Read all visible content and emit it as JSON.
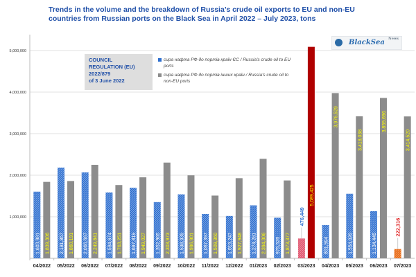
{
  "title": "Trends in the volume and the breakdown of Russia’s crude oil exports to EU and non-EU countries from Russian ports on the Black Sea in April 2022 – July 2023, tons",
  "logo_text": "BlackSea",
  "logo_news": "News",
  "council_note": [
    "COUNCIL",
    "REGULATION (EU)",
    "2022/879",
    "of 3 June 2022"
  ],
  "colors": {
    "eu": "#2e6fcf",
    "non_eu": "#8c8c8c",
    "highlight_non_eu": "#b00000",
    "highlight_eu_03_2023": "#e0506a",
    "highlight_eu_07_2023": "#e8630a",
    "title": "#1f4fa8",
    "label_yellow": "#ffff00"
  },
  "chart_data": {
    "type": "bar",
    "title": "Trends in the volume and the breakdown of Russia’s crude oil exports to EU and non-EU countries from Russian ports on the Black Sea in April 2022 – July 2023, tons",
    "xlabel": "",
    "ylabel": "",
    "ylim": [
      0,
      5000000
    ],
    "yticks": [
      "0",
      "1,000,000",
      "2,000,000",
      "3,000,000",
      "4,000,000",
      "5,000,000"
    ],
    "grid": true,
    "legend_position": "top-center",
    "categories": [
      "04/2022",
      "05/2022",
      "06/2022",
      "07/2022",
      "08/2022",
      "09/2022",
      "10/2022",
      "11/2022",
      "12/2022",
      "01/2023",
      "02/2023",
      "03/2023",
      "04/2023",
      "05/2023",
      "06/2023",
      "07/2023"
    ],
    "series": [
      {
        "name": "сира нафта РФ до портів країн ЄС / Russia's crude oil to EU ports",
        "values": [
          1603981,
          2181857,
          2066667,
          1584674,
          1697819,
          1352965,
          1538939,
          1067397,
          1019247,
          1274281,
          975520,
          476449,
          801594,
          1554020,
          1134445,
          222316
        ],
        "labels": [
          "1,603,981",
          "2,181,857",
          "2,066,667",
          "1,584,674",
          "1,697,819",
          "1,352,965",
          "1,538,939",
          "1,067,397",
          "1,019,247",
          "1,274,281",
          "975,520",
          "476,449",
          "801,594",
          "1,554,020",
          "1,134,445",
          "222,316"
        ]
      },
      {
        "name": "сира нафта РФ до портів інших країн / Russia's crude oil to non-EU ports",
        "values": [
          1839306,
          1860191,
          2249841,
          1763251,
          1949027,
          2303973,
          1996901,
          1509360,
          1927948,
          2394306,
          1873377,
          5089425,
          3976529,
          3418038,
          3859696,
          3414520
        ],
        "labels": [
          "1,839,306",
          "1,860,191",
          "2,249,841",
          "1,763,251",
          "1,949,027",
          "2,303,973",
          "1,996,901",
          "1,509,360",
          "1,927,948",
          "2,394,306",
          "1,873,377",
          "5,089,425",
          "3,976,529",
          "3,418,038",
          "3,859,696",
          "3,414,520"
        ]
      }
    ]
  }
}
